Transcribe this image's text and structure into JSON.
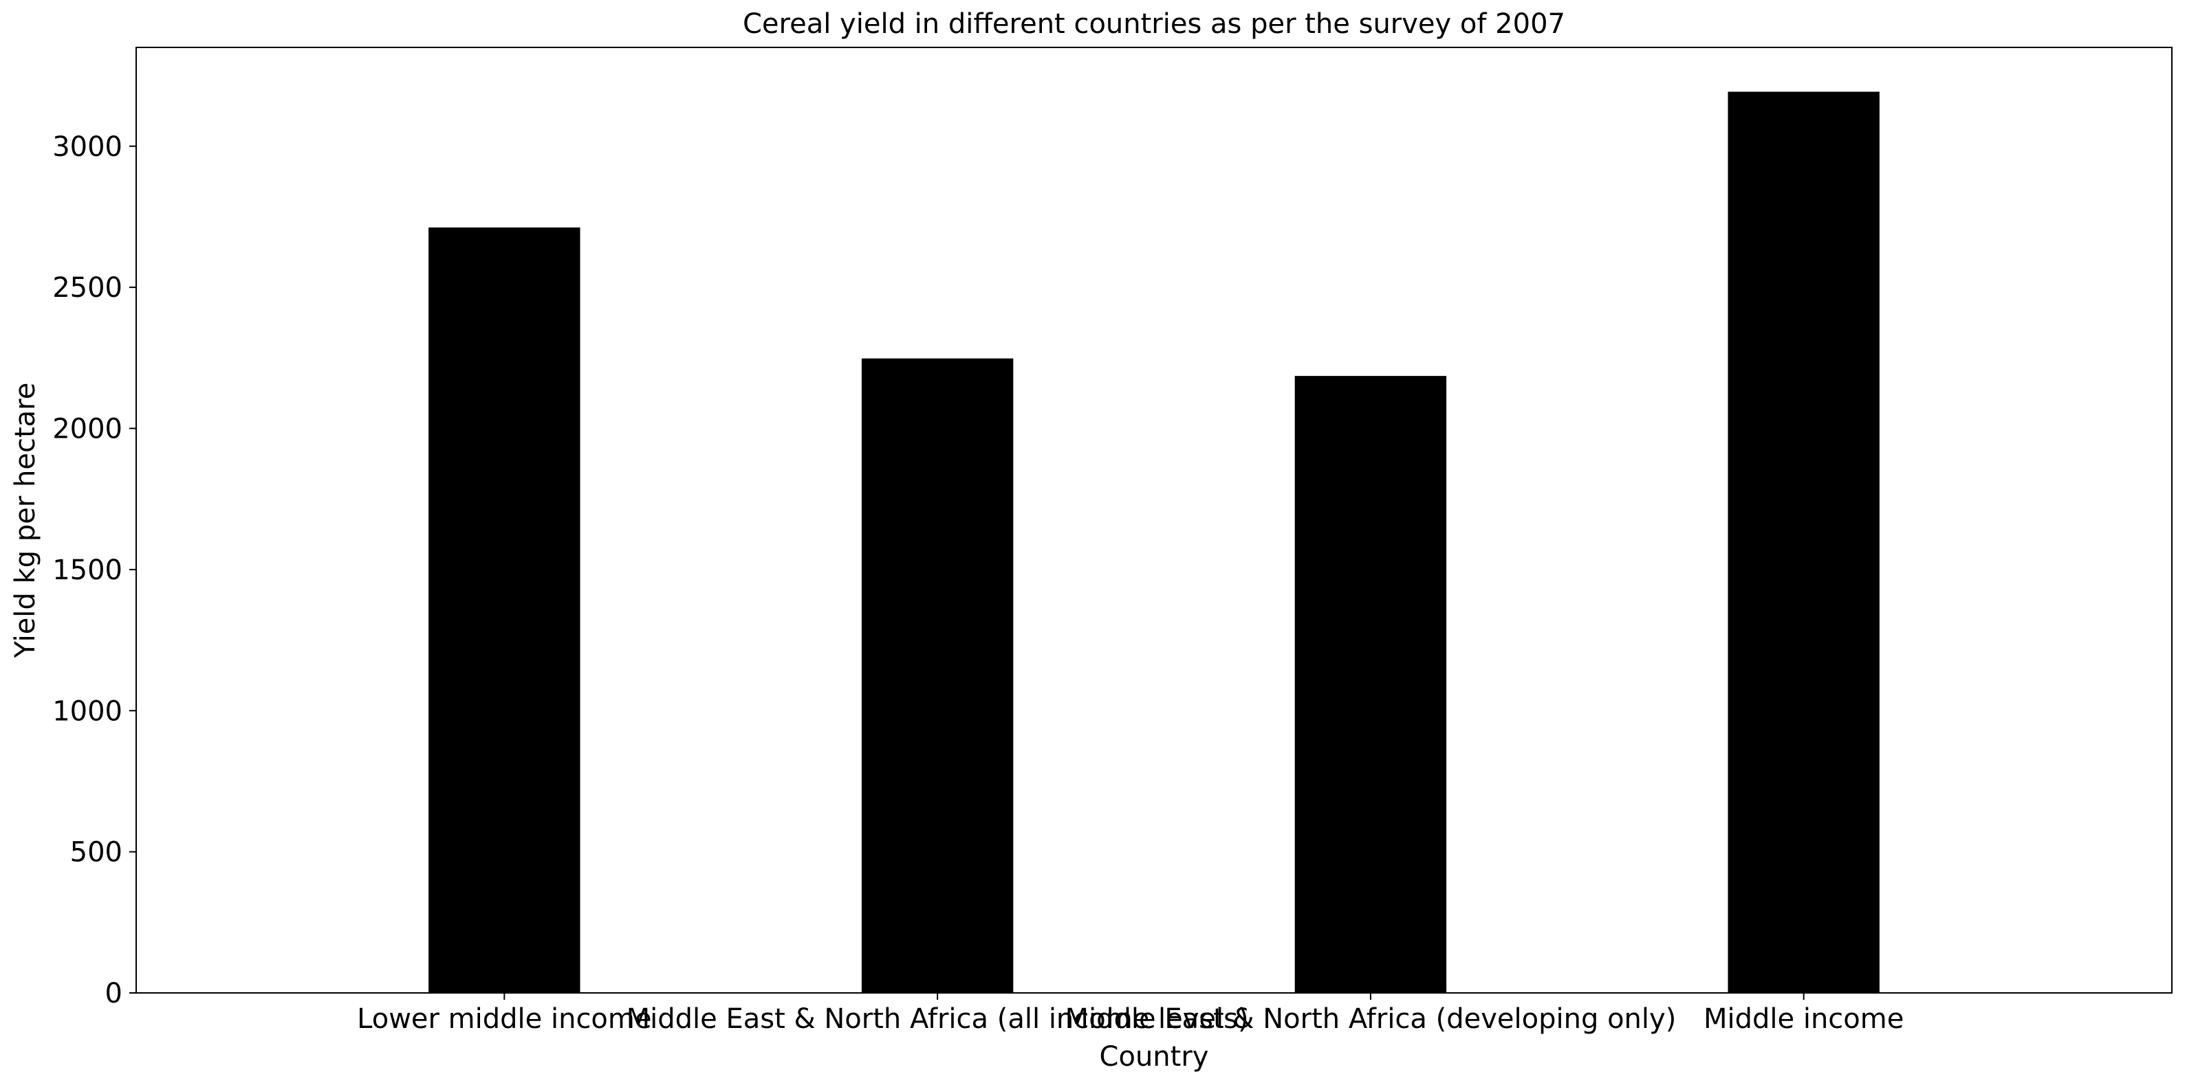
{
  "chart_data": {
    "type": "bar",
    "title": "Cereal yield in different countries as per the survey of 2007",
    "xlabel": "Country",
    "ylabel": "Yield kg per hectare",
    "categories": [
      "Lower middle income",
      "Middle East & North Africa (all income levels)",
      "Middle East & North Africa (developing only)",
      "Middle income"
    ],
    "values": [
      2712,
      2248,
      2186,
      3193
    ],
    "ylim": [
      0,
      3350
    ],
    "yticks": [
      0,
      500,
      1000,
      1500,
      2000,
      2500,
      3000
    ],
    "bar_color": "#000000",
    "grid": false,
    "legend": "none"
  }
}
